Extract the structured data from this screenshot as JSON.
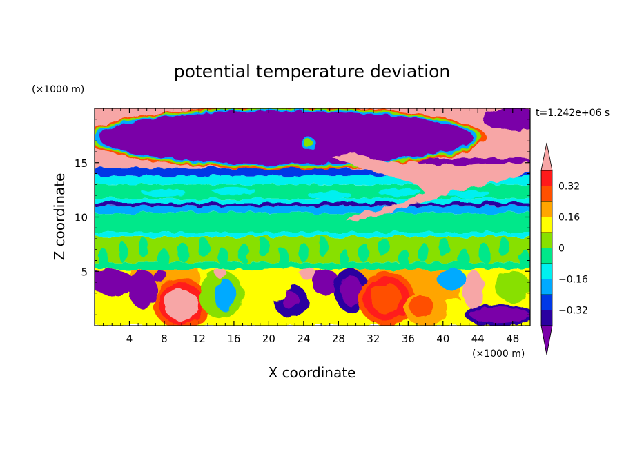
{
  "chart_data": {
    "type": "heatmap",
    "title": "potential temperature deviation",
    "xlabel": "X coordinate",
    "ylabel": "Z coordinate",
    "x_unit_label": "(×1000 m)",
    "y_unit_label": "(×1000 m)",
    "time_label": "t=1.242e+06 s",
    "xlim": [
      0,
      50
    ],
    "ylim": [
      0,
      20
    ],
    "x_ticks": [
      4,
      8,
      12,
      16,
      20,
      24,
      28,
      32,
      36,
      40,
      44,
      48
    ],
    "y_ticks": [
      5,
      10,
      15
    ],
    "x_tick_labels": [
      "4",
      "8",
      "12",
      "16",
      "20",
      "24",
      "28",
      "32",
      "36",
      "40",
      "44",
      "48"
    ],
    "y_tick_labels": [
      "5",
      "10",
      "15"
    ],
    "colorbar": {
      "levels": [
        -0.4,
        -0.32,
        -0.24,
        -0.16,
        -0.08,
        0,
        0.08,
        0.16,
        0.24,
        0.32,
        0.4
      ],
      "tick_values": [
        0.32,
        0.16,
        0,
        -0.16,
        -0.32
      ],
      "tick_labels": [
        "0.32",
        "0.16",
        "0",
        "−0.16",
        "−0.32"
      ],
      "colors": [
        "#7a00a8",
        "#2a00a0",
        "#0038e6",
        "#00aaff",
        "#00f0f0",
        "#00e88a",
        "#88e000",
        "#ffff00",
        "#ffa500",
        "#ff5000",
        "#ff1a1a",
        "#f7a6a6"
      ],
      "extend": "both"
    }
  }
}
